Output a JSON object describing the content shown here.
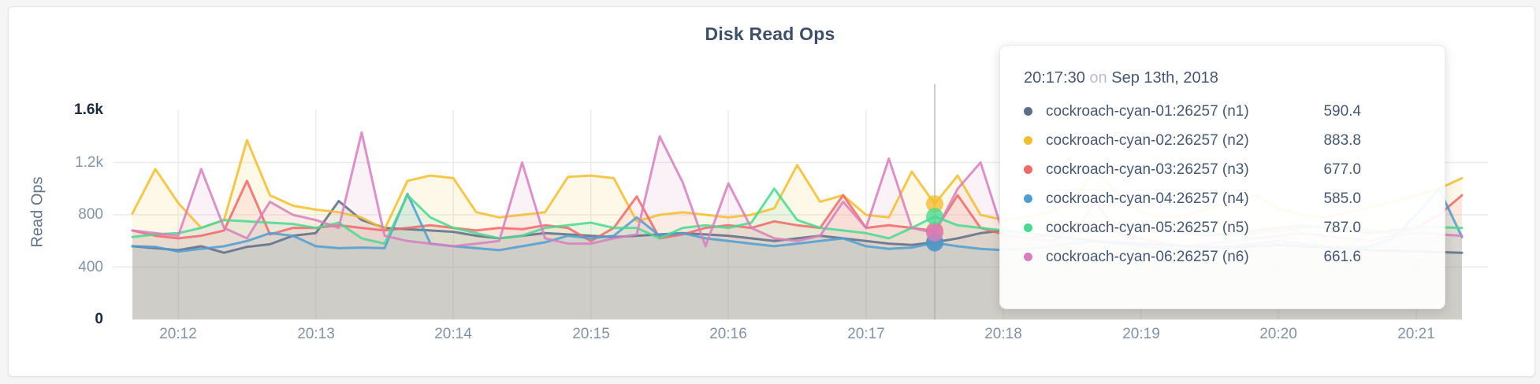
{
  "chart_data": {
    "type": "line",
    "title": "Disk Read Ops",
    "ylabel": "Read Ops",
    "ylim": [
      0,
      1600
    ],
    "grid_y_values": [
      400,
      800,
      1200
    ],
    "ytick_labels": [
      {
        "label": "1.6k",
        "value": 1600,
        "strong": true
      },
      {
        "label": "1.2k",
        "value": 1200,
        "strong": false
      },
      {
        "label": "800",
        "value": 800,
        "strong": false
      },
      {
        "label": "400",
        "value": 400,
        "strong": false
      },
      {
        "label": "0",
        "value": 0,
        "strong": true
      }
    ],
    "x_start": "20:11:40",
    "x_interval_seconds": 10,
    "x_ticks": [
      {
        "label": "20:12",
        "index": 2
      },
      {
        "label": "20:13",
        "index": 8
      },
      {
        "label": "20:14",
        "index": 14
      },
      {
        "label": "20:15",
        "index": 20
      },
      {
        "label": "20:16",
        "index": 26
      },
      {
        "label": "20:17",
        "index": 32
      },
      {
        "label": "20:18",
        "index": 38
      },
      {
        "label": "20:19",
        "index": 44
      },
      {
        "label": "20:20",
        "index": 50
      },
      {
        "label": "20:21",
        "index": 56
      }
    ],
    "series": [
      {
        "name": "cockroach-cyan-01:26257 (n1)",
        "color": "#5F6C87",
        "values": [
          560,
          545,
          530,
          560,
          510,
          555,
          575,
          640,
          660,
          905,
          760,
          700,
          690,
          680,
          670,
          640,
          620,
          640,
          660,
          650,
          640,
          630,
          640,
          650,
          660,
          650,
          640,
          620,
          600,
          620,
          640,
          620,
          600,
          580,
          570,
          590.4,
          620,
          660,
          680,
          660,
          640,
          620,
          600,
          590,
          580,
          570,
          560,
          555,
          550,
          560,
          570,
          560,
          550,
          540,
          530,
          525,
          520,
          515,
          510
        ]
      },
      {
        "name": "cockroach-cyan-02:26257 (n2)",
        "color": "#F2BE2C",
        "values": [
          810,
          1150,
          890,
          700,
          760,
          1370,
          950,
          870,
          840,
          820,
          780,
          690,
          1060,
          1100,
          1080,
          820,
          780,
          800,
          820,
          1090,
          1100,
          1080,
          750,
          800,
          820,
          800,
          780,
          800,
          850,
          1180,
          900,
          950,
          800,
          780,
          1130,
          883.8,
          1100,
          800,
          760,
          780,
          820,
          900,
          1150,
          950,
          820,
          780,
          800,
          850,
          900,
          950,
          850,
          800,
          780,
          820,
          860,
          900,
          950,
          1000,
          1080
        ]
      },
      {
        "name": "cockroach-cyan-03:26257 (n3)",
        "color": "#F16969",
        "values": [
          680,
          640,
          620,
          640,
          680,
          1060,
          650,
          700,
          700,
          720,
          700,
          680,
          700,
          720,
          700,
          680,
          700,
          690,
          720,
          700,
          600,
          700,
          940,
          620,
          650,
          700,
          720,
          700,
          750,
          720,
          700,
          950,
          700,
          720,
          700,
          677,
          950,
          700,
          650,
          620,
          650,
          680,
          700,
          720,
          700,
          680,
          660,
          640,
          660,
          680,
          700,
          720,
          700,
          680,
          660,
          680,
          700,
          800,
          950
        ]
      },
      {
        "name": "cockroach-cyan-04:26257 (n4)",
        "color": "#4E9FD1",
        "values": [
          560,
          555,
          520,
          540,
          560,
          600,
          660,
          640,
          560,
          545,
          550,
          545,
          960,
          580,
          560,
          545,
          530,
          560,
          590,
          640,
          620,
          640,
          780,
          640,
          660,
          620,
          600,
          580,
          560,
          580,
          600,
          620,
          560,
          540,
          550,
          585,
          560,
          540,
          530,
          540,
          560,
          580,
          600,
          580,
          560,
          540,
          530,
          540,
          560,
          580,
          600,
          580,
          560,
          540,
          560,
          620,
          800,
          1000,
          630
        ]
      },
      {
        "name": "cockroach-cyan-05:26257 (n5)",
        "color": "#49D990",
        "values": [
          630,
          650,
          660,
          700,
          760,
          750,
          740,
          730,
          700,
          740,
          620,
          580,
          950,
          780,
          700,
          660,
          620,
          640,
          700,
          720,
          740,
          700,
          700,
          620,
          700,
          720,
          700,
          740,
          1000,
          760,
          700,
          680,
          660,
          620,
          700,
          787,
          720,
          700,
          680,
          660,
          640,
          660,
          680,
          700,
          720,
          700,
          680,
          660,
          640,
          660,
          680,
          700,
          720,
          700,
          680,
          660,
          700,
          705,
          700
        ]
      },
      {
        "name": "cockroach-cyan-06:26257 (n6)",
        "color": "#D77FBF",
        "values": [
          680,
          660,
          640,
          1150,
          700,
          620,
          900,
          800,
          760,
          700,
          1430,
          640,
          600,
          580,
          560,
          580,
          600,
          1200,
          620,
          580,
          580,
          620,
          650,
          1400,
          1050,
          560,
          1040,
          700,
          620,
          600,
          640,
          900,
          700,
          1230,
          700,
          661.6,
          1000,
          1200,
          650,
          620,
          600,
          640,
          900,
          660,
          620,
          580,
          560,
          580,
          600,
          620,
          640,
          660,
          640,
          620,
          600,
          640,
          660,
          650,
          640
        ]
      }
    ]
  },
  "tooltip": {
    "time": "20:17:30",
    "on_word": "on",
    "date": "Sep 13th, 2018",
    "hover_index": 35,
    "rows": [
      {
        "name": "cockroach-cyan-01:26257 (n1)",
        "value": "590.4",
        "color": "#5F6C87"
      },
      {
        "name": "cockroach-cyan-02:26257 (n2)",
        "value": "883.8",
        "color": "#F2BE2C"
      },
      {
        "name": "cockroach-cyan-03:26257 (n3)",
        "value": "677.0",
        "color": "#F16969"
      },
      {
        "name": "cockroach-cyan-04:26257 (n4)",
        "value": "585.0",
        "color": "#4E9FD1"
      },
      {
        "name": "cockroach-cyan-05:26257 (n5)",
        "value": "787.0",
        "color": "#49D990"
      },
      {
        "name": "cockroach-cyan-06:26257 (n6)",
        "value": "661.6",
        "color": "#D77FBF"
      }
    ]
  },
  "colors": {
    "hover_line": "#a9a9a9",
    "grid": "#ececec",
    "title": "#3f4f68"
  }
}
